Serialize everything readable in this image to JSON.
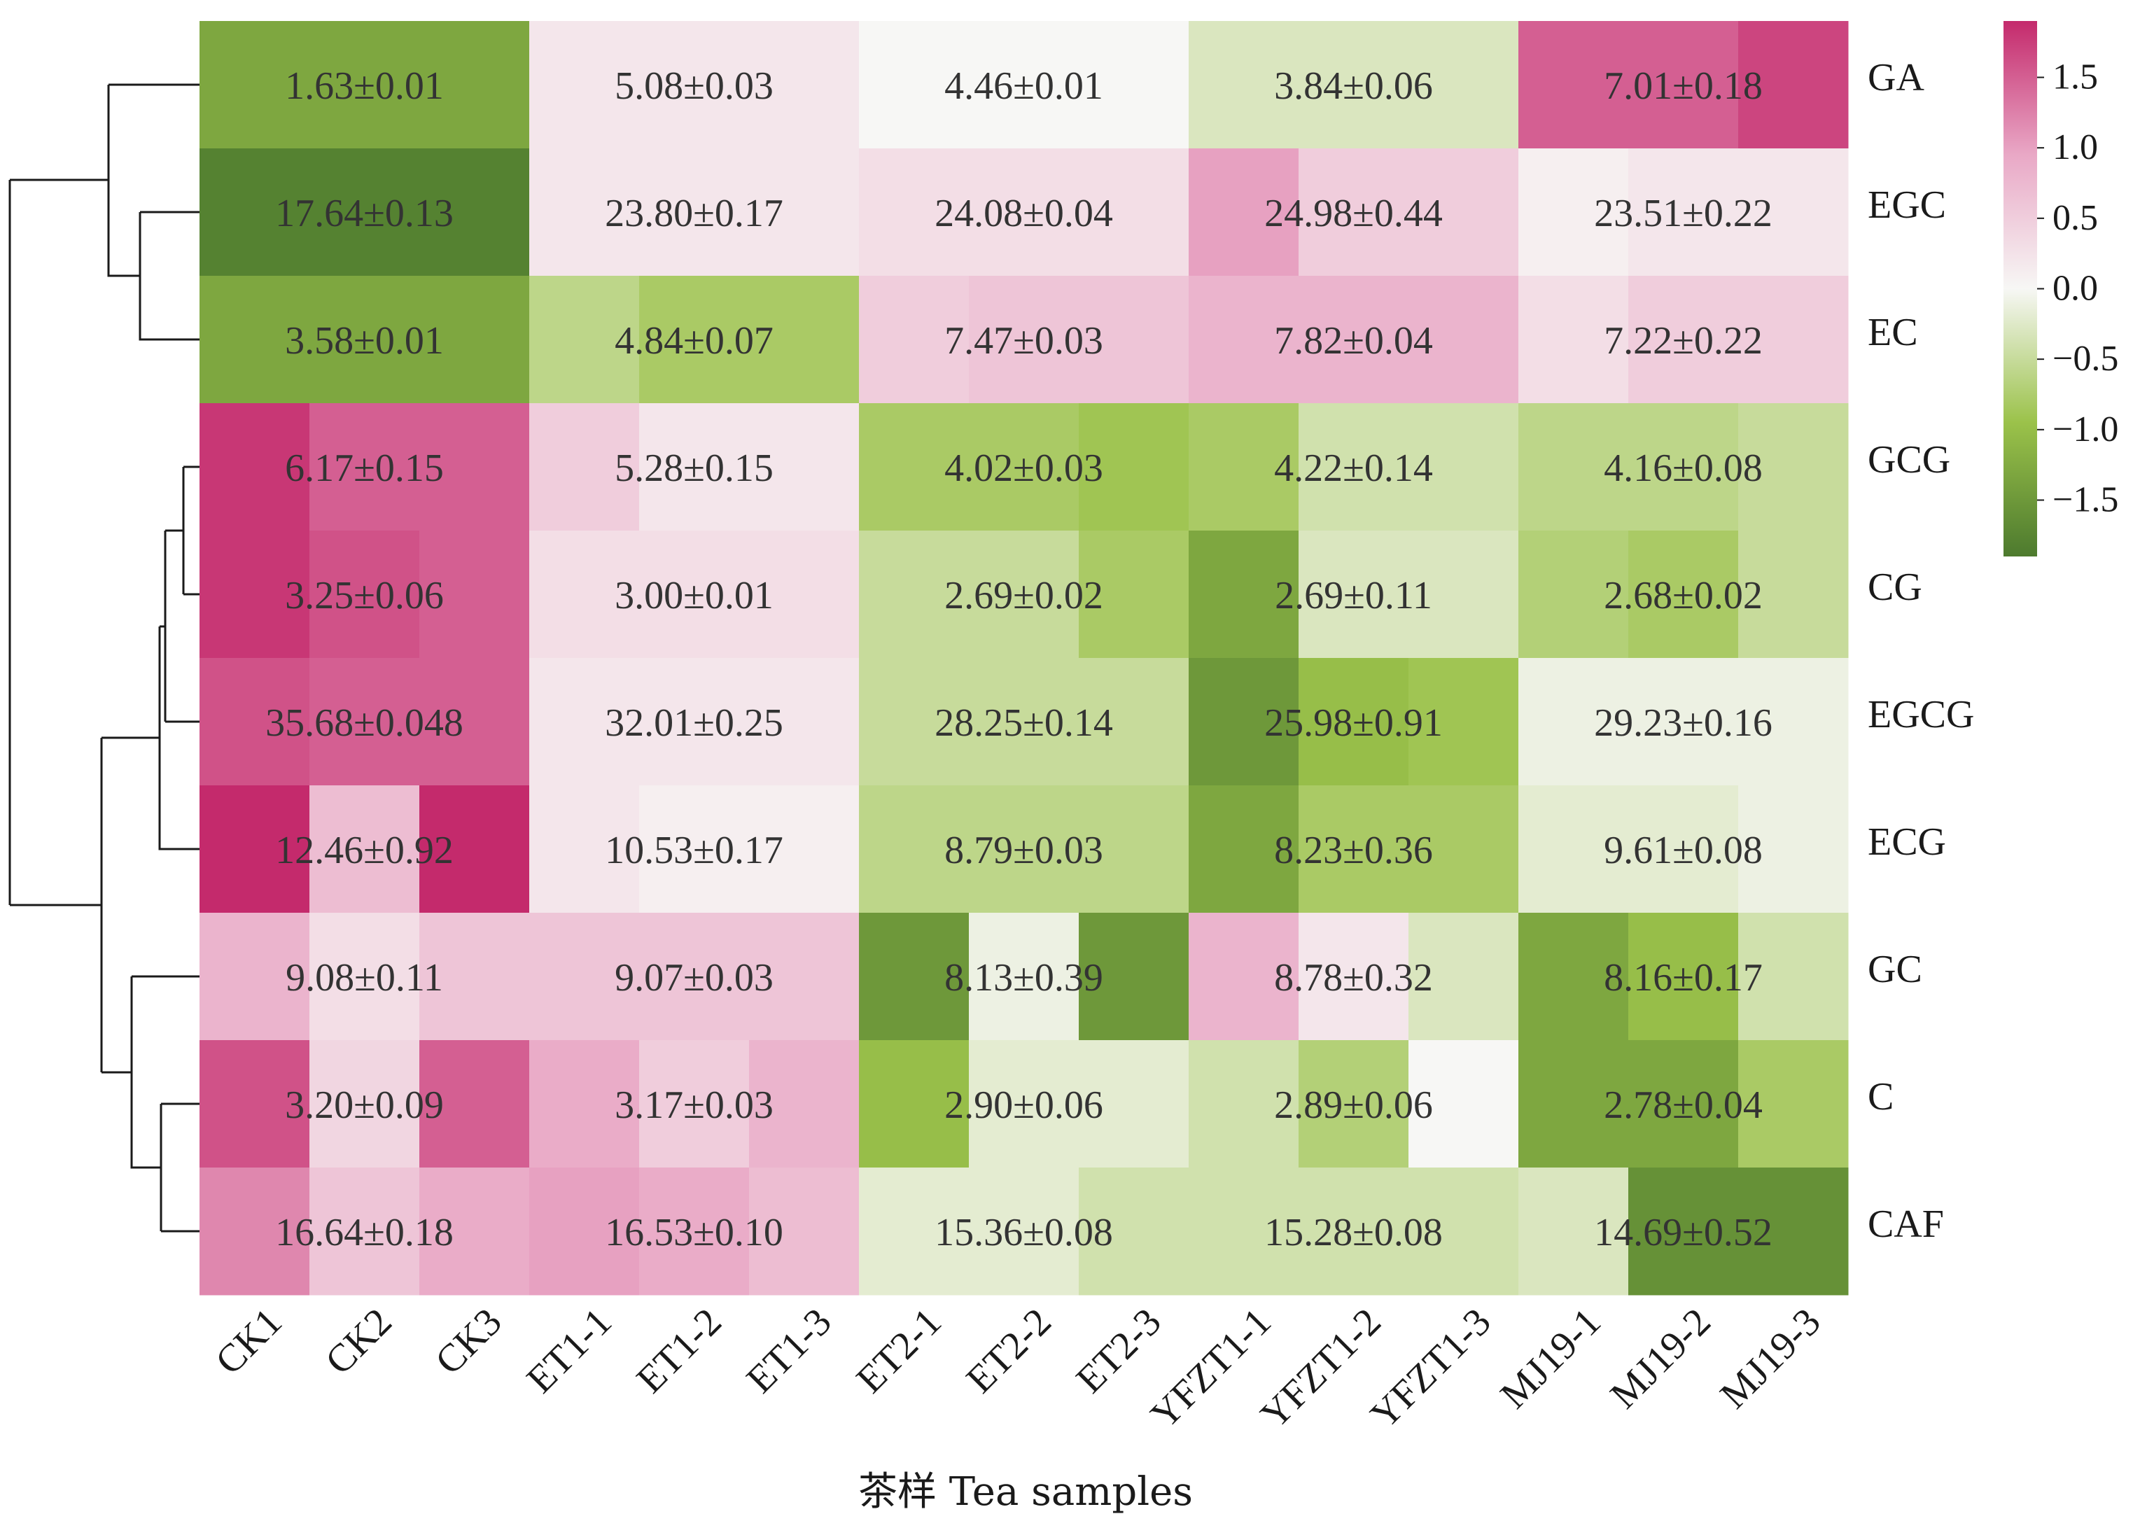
{
  "chart_data": {
    "type": "heatmap",
    "xlabel": "茶样 Tea samples",
    "columns": [
      "CK1",
      "CK2",
      "CK3",
      "ET1-1",
      "ET1-2",
      "ET1-3",
      "ET2-1",
      "ET2-2",
      "ET2-3",
      "YFZT1-1",
      "YFZT1-2",
      "YFZT1-3",
      "MJ19-1",
      "MJ19-2",
      "MJ19-3"
    ],
    "rows": [
      "GA",
      "EGC",
      "EC",
      "GCG",
      "CG",
      "EGCG",
      "ECG",
      "GC",
      "C",
      "CAF"
    ],
    "groups": [
      "CK",
      "ET1",
      "ET2",
      "YFZT1",
      "MJ19"
    ],
    "cell_labels": [
      [
        "1.63±0.01",
        "5.08±0.03",
        "4.46±0.01",
        "3.84±0.06",
        "7.01±0.18"
      ],
      [
        "17.64±0.13",
        "23.80±0.17",
        "24.08±0.04",
        "24.98±0.44",
        "23.51±0.22"
      ],
      [
        "3.58±0.01",
        "4.84±0.07",
        "7.47±0.03",
        "7.82±0.04",
        "7.22±0.22"
      ],
      [
        "6.17±0.15",
        "5.28±0.15",
        "4.02±0.03",
        "4.22±0.14",
        "4.16±0.08"
      ],
      [
        "3.25±0.06",
        "3.00±0.01",
        "2.69±0.02",
        "2.69±0.11",
        "2.68±0.02"
      ],
      [
        "35.68±0.048",
        "32.01±0.25",
        "28.25±0.14",
        "25.98±0.91",
        "29.23±0.16"
      ],
      [
        "12.46±0.92",
        "10.53±0.17",
        "8.79±0.03",
        "8.23±0.36",
        "9.61±0.08"
      ],
      [
        "9.08±0.11",
        "9.07±0.03",
        "8.13±0.39",
        "8.78±0.32",
        "8.16±0.17"
      ],
      [
        "3.20±0.09",
        "3.17±0.03",
        "2.90±0.06",
        "2.89±0.06",
        "2.78±0.04"
      ],
      [
        "16.64±0.18",
        "16.53±0.10",
        "15.36±0.08",
        "15.28±0.08",
        "14.69±0.52"
      ]
    ],
    "values": [
      [
        -1.3,
        -1.3,
        -1.3,
        0.2,
        0.2,
        0.2,
        0.0,
        0.0,
        0.0,
        -0.3,
        -0.3,
        -0.3,
        1.5,
        1.5,
        1.7
      ],
      [
        -1.8,
        -1.8,
        -1.8,
        0.2,
        0.2,
        0.2,
        0.3,
        0.3,
        0.3,
        1.0,
        0.5,
        0.5,
        0.1,
        0.2,
        0.2
      ],
      [
        -1.3,
        -1.3,
        -1.3,
        -0.6,
        -0.8,
        -0.8,
        0.5,
        0.6,
        0.6,
        0.8,
        0.8,
        0.8,
        0.3,
        0.5,
        0.5
      ],
      [
        1.8,
        1.5,
        1.5,
        0.5,
        0.2,
        0.2,
        -0.8,
        -0.8,
        -0.9,
        -0.8,
        -0.4,
        -0.4,
        -0.6,
        -0.6,
        -0.5
      ],
      [
        1.8,
        1.6,
        1.5,
        0.3,
        0.3,
        0.3,
        -0.5,
        -0.5,
        -0.8,
        -1.3,
        -0.3,
        -0.3,
        -0.7,
        -0.8,
        -0.5
      ],
      [
        1.6,
        1.5,
        1.5,
        0.2,
        0.2,
        0.2,
        -0.5,
        -0.5,
        -0.5,
        -1.5,
        -1.0,
        -0.9,
        -0.1,
        -0.1,
        -0.1
      ],
      [
        1.9,
        0.7,
        1.9,
        0.2,
        0.1,
        0.1,
        -0.6,
        -0.6,
        -0.6,
        -1.3,
        -0.8,
        -0.8,
        -0.2,
        -0.2,
        -0.1
      ],
      [
        0.8,
        0.3,
        0.6,
        0.6,
        0.6,
        0.6,
        -1.5,
        -0.1,
        -1.5,
        0.8,
        0.2,
        -0.3,
        -1.3,
        -1.0,
        -0.4
      ],
      [
        1.6,
        0.4,
        1.5,
        0.9,
        0.5,
        0.8,
        -1.0,
        -0.2,
        -0.2,
        -0.4,
        -0.7,
        0.0,
        -1.3,
        -1.3,
        -0.8
      ],
      [
        1.2,
        0.6,
        0.9,
        1.0,
        0.9,
        0.7,
        -0.2,
        -0.2,
        -0.4,
        -0.4,
        -0.4,
        -0.4,
        -0.3,
        -1.6,
        -1.6
      ]
    ],
    "colorbar": {
      "min": -1.9,
      "max": 1.9,
      "ticks": [
        "1.5",
        "1.0",
        "0.5",
        "0.0",
        "−0.5",
        "−1.0",
        "−1.5"
      ],
      "tick_values": [
        1.5,
        1.0,
        0.5,
        0.0,
        -0.5,
        -1.0,
        -1.5
      ]
    },
    "colormap": {
      "negative": "#4d7a2e",
      "mid_neg": "#9bc24a",
      "neutral": "#f7f7f5",
      "mid_pos": "#e9a8c6",
      "positive": "#c42a6c"
    },
    "row_dendrogram": true
  }
}
